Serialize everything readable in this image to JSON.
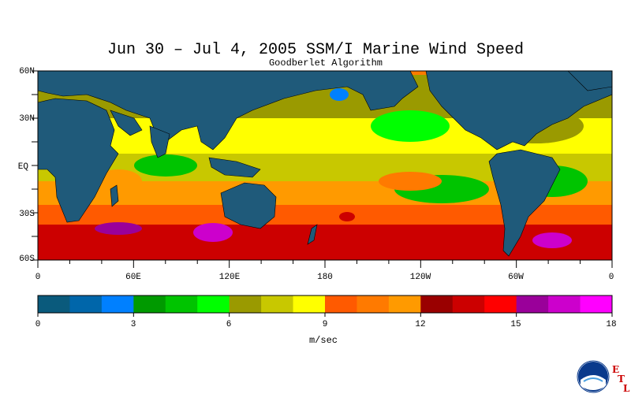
{
  "map": {
    "title": "Jun 30 – Jul 4, 2005 SSM/I Marine Wind Speed",
    "subtitle": "Goodberlet Algorithm",
    "lat_labels": [
      "60N",
      "30N",
      "EQ",
      "30S",
      "60S"
    ],
    "lon_labels": [
      "0",
      "60E",
      "120E",
      "180",
      "120W",
      "60W",
      "0"
    ],
    "colors": {
      "land": "#1f5a7a",
      "ocean_low": "#00a000",
      "ocean_mid": "#e0e000",
      "ocean_high": "#ff7a00",
      "ocean_storm": "#cc0000"
    }
  },
  "colorbar": {
    "ticks": [
      "0",
      "3",
      "6",
      "9",
      "12",
      "15",
      "18"
    ],
    "units": "m/sec",
    "colors": [
      "#0a5a7c",
      "#0066aa",
      "#0080ff",
      "#009a00",
      "#00c400",
      "#00ff00",
      "#9a9a00",
      "#c8c800",
      "#ffff00",
      "#ff5a00",
      "#ff7a00",
      "#ff9a00",
      "#9a0000",
      "#cc0000",
      "#ff0000",
      "#9a009a",
      "#cc00cc",
      "#ff00ff"
    ]
  },
  "logo": {
    "name": "NOAA",
    "etl": [
      "E",
      "T",
      "L"
    ]
  }
}
